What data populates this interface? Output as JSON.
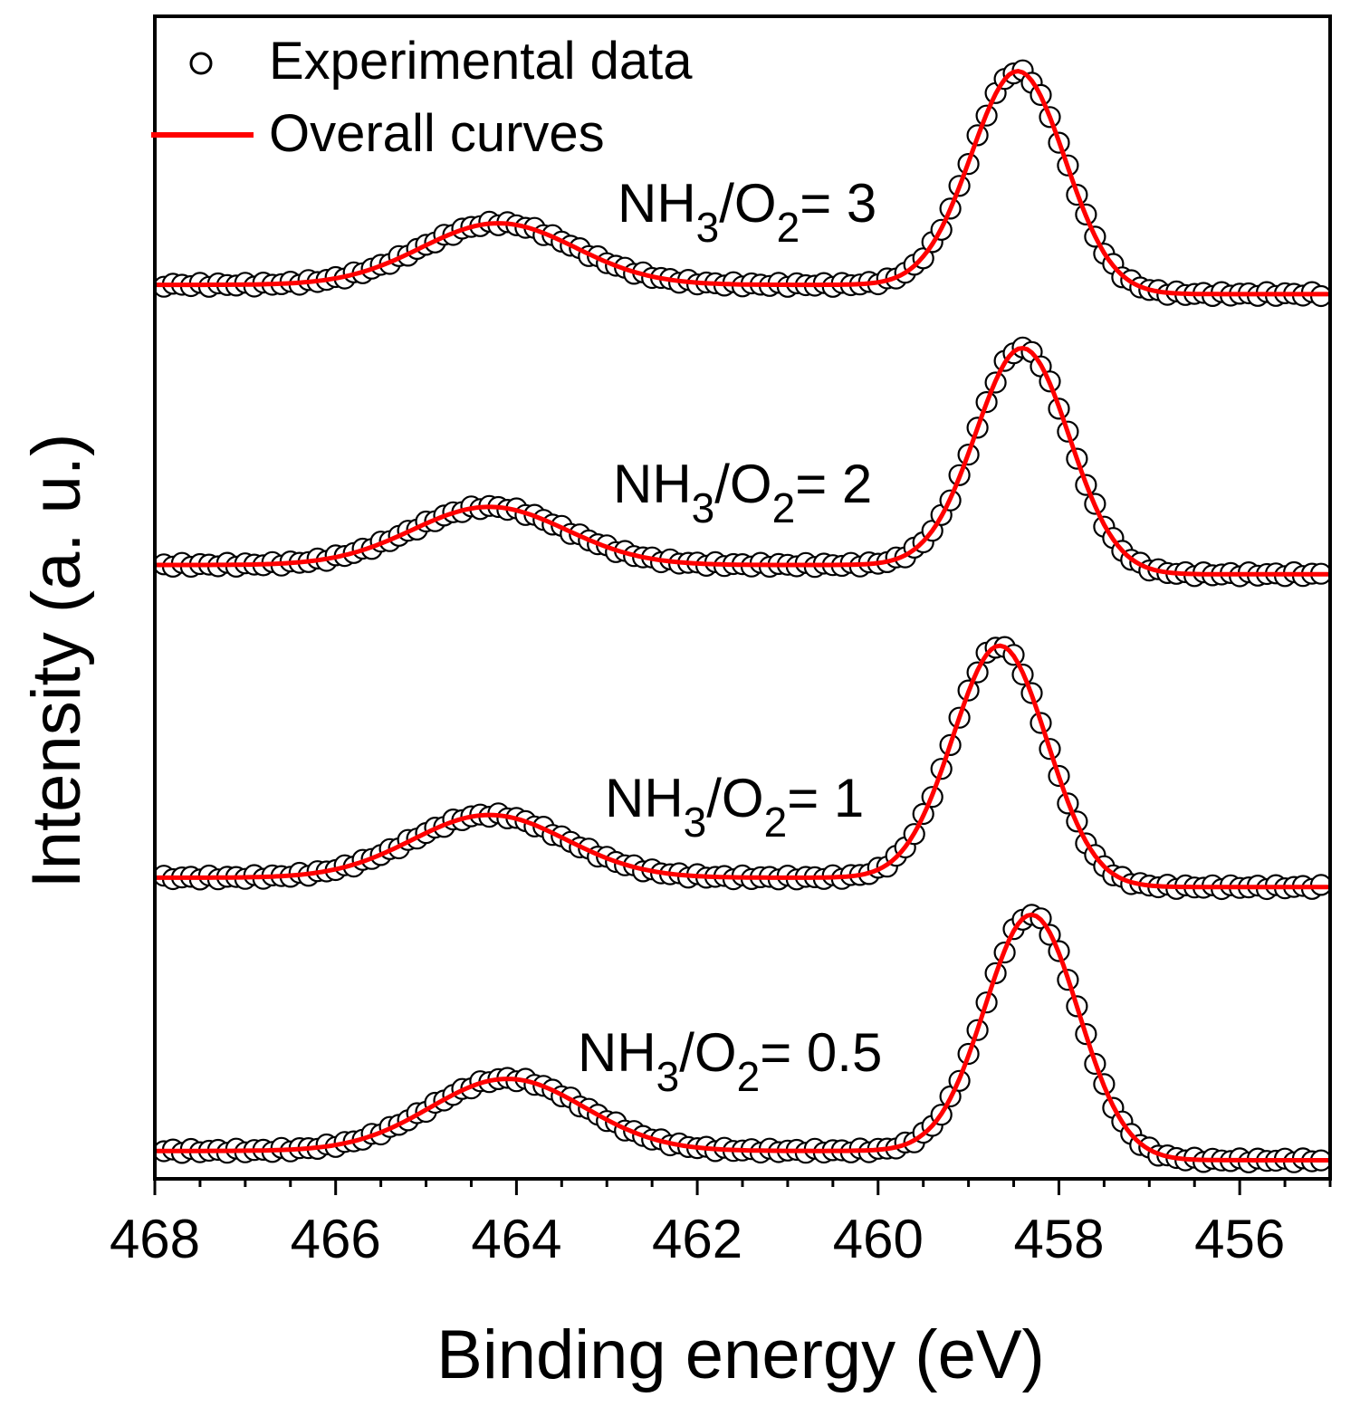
{
  "chart_data": {
    "type": "line",
    "title": "",
    "xlabel": "Binding energy (eV)",
    "ylabel": "Intensity (a. u.)",
    "xlim": [
      468,
      455
    ],
    "x_reversed": true,
    "xticks": [
      468,
      466,
      464,
      462,
      460,
      458,
      456
    ],
    "xtick_labels": [
      "468",
      "466",
      "464",
      "462",
      "460",
      "458",
      "456"
    ],
    "yticks_shown": false,
    "ylim": [
      0,
      100
    ],
    "grid": false,
    "legend": {
      "position": "top-left",
      "entries": [
        {
          "label": "Experimental data",
          "marker": "open-circle",
          "color": "#000000"
        },
        {
          "label": "Overall curves",
          "marker": "line",
          "color": "#ff0000"
        }
      ]
    },
    "colors": {
      "fit": "#ff0000",
      "data": "#000000",
      "axis": "#000000"
    },
    "series": [
      {
        "name": "NH3/O2= 3",
        "label_base": "NH",
        "label_sub1": "3",
        "label_mid": "/O",
        "label_sub2": "2",
        "label_tail": "= 3",
        "baseline": 76.1,
        "peak_x": 458.45,
        "peak_height": 18.8,
        "shoulder_x": 464.2,
        "shoulder_height": 5.3
      },
      {
        "name": "NH3/O2= 2",
        "label_base": "NH",
        "label_sub1": "3",
        "label_mid": "/O",
        "label_sub2": "2",
        "label_tail": "= 2",
        "baseline": 52.0,
        "peak_x": 458.4,
        "peak_height": 19.1,
        "shoulder_x": 464.3,
        "shoulder_height": 5.0
      },
      {
        "name": "NH3/O2= 1",
        "label_base": "NH",
        "label_sub1": "3",
        "label_mid": "/O",
        "label_sub2": "2",
        "label_tail": "= 1",
        "baseline": 25.1,
        "peak_x": 458.65,
        "peak_height": 20.3,
        "shoulder_x": 464.3,
        "shoulder_height": 5.4
      },
      {
        "name": "NH3/O2= 0.5",
        "label_base": "NH",
        "label_sub1": "3",
        "label_mid": "/O",
        "label_sub2": "2",
        "label_tail": "= 0.5",
        "baseline": 1.6,
        "peak_x": 458.3,
        "peak_height": 20.8,
        "shoulder_x": 464.1,
        "shoulder_height": 6.2
      }
    ]
  }
}
